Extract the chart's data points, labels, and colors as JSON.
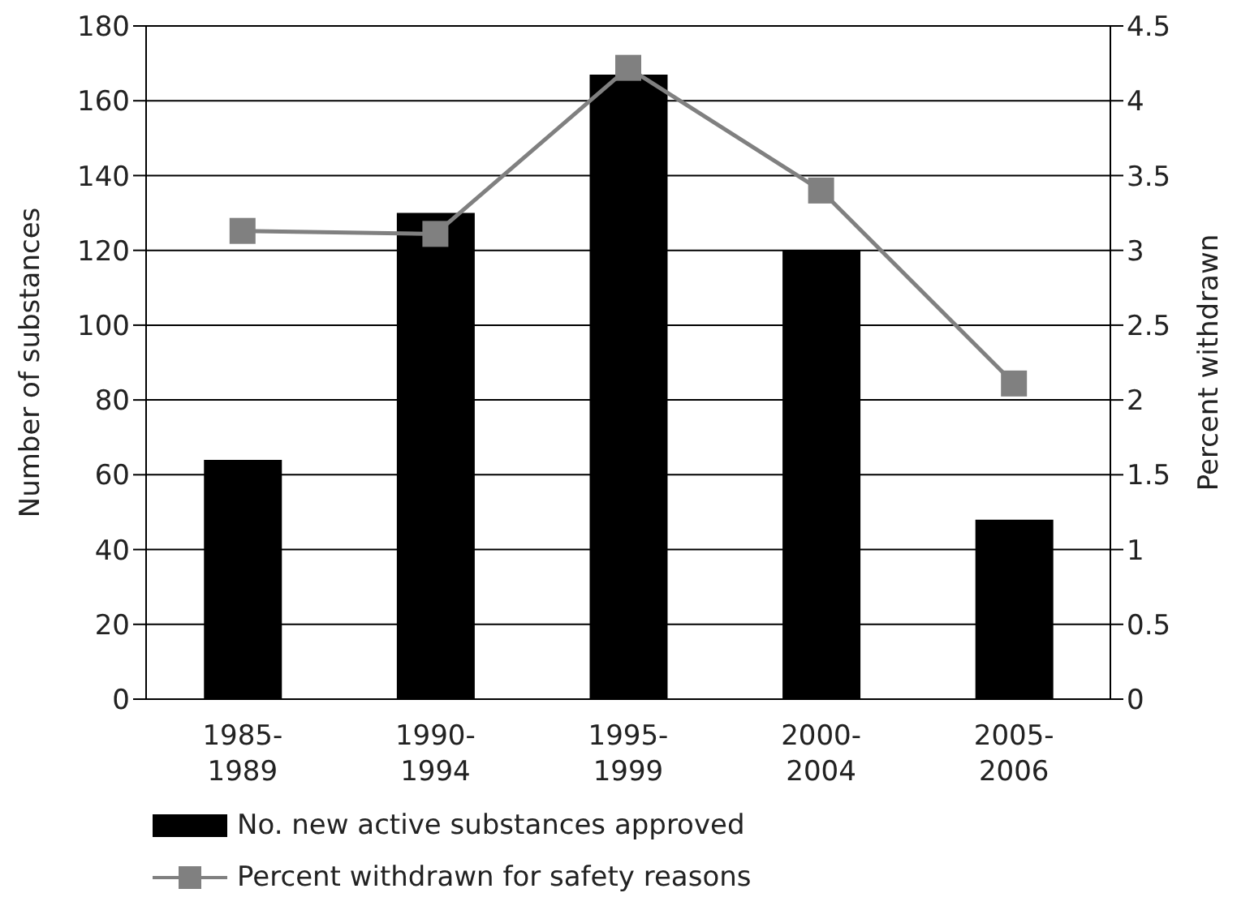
{
  "chart_data": {
    "type": "bar",
    "categories": [
      "1985-1989",
      "1990-1994",
      "1995-1999",
      "2000-2004",
      "2005-2006"
    ],
    "series": [
      {
        "name": "No. new active substances approved",
        "color": "#000000",
        "values": [
          64,
          130,
          167,
          120,
          48
        ]
      },
      {
        "name": "Percent withdrawn for safety reasons",
        "type": "line",
        "axis": "y2",
        "color": "#808080",
        "marker": "square",
        "values": [
          3.13,
          3.11,
          4.22,
          3.4,
          2.11
        ]
      }
    ],
    "ylabel": "Number of substances",
    "y2label": "Percent withdrawn",
    "ylim": [
      0,
      180
    ],
    "yticks": [
      0,
      20,
      40,
      60,
      80,
      100,
      120,
      140,
      160,
      180
    ],
    "y2lim": [
      0,
      4.5
    ],
    "y2ticks": [
      0,
      0.5,
      1,
      1.5,
      2,
      2.5,
      3,
      3.5,
      4,
      4.5
    ],
    "grid": "y",
    "legend": "bottom left"
  }
}
